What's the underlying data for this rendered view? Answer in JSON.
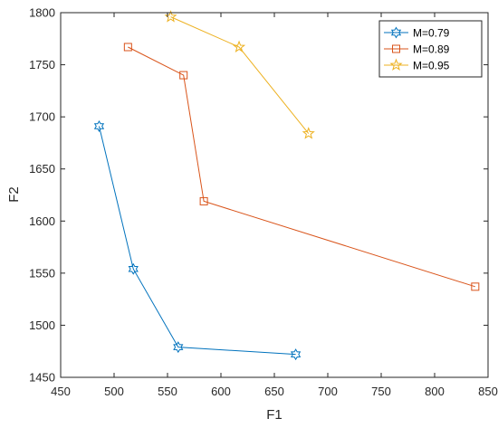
{
  "chart_data": {
    "type": "line",
    "xlabel": "F1",
    "ylabel": "F2",
    "xlim": [
      450,
      850
    ],
    "ylim": [
      1450,
      1800
    ],
    "xticks": [
      450,
      500,
      550,
      600,
      650,
      700,
      750,
      800,
      850
    ],
    "yticks": [
      1450,
      1500,
      1550,
      1600,
      1650,
      1700,
      1750,
      1800
    ],
    "grid": false,
    "legend_position": "top-right",
    "series": [
      {
        "name": "M=0.79",
        "color": "#0072BD",
        "marker": "hexagram",
        "points": [
          [
            486,
            1691
          ],
          [
            518,
            1554
          ],
          [
            560,
            1479
          ],
          [
            670,
            1472
          ]
        ]
      },
      {
        "name": "M=0.89",
        "color": "#D95319",
        "marker": "square",
        "points": [
          [
            513,
            1767
          ],
          [
            565,
            1740
          ],
          [
            584,
            1619
          ],
          [
            838,
            1537
          ]
        ]
      },
      {
        "name": "M=0.95",
        "color": "#EDB120",
        "marker": "pentagram",
        "points": [
          [
            553,
            1796
          ],
          [
            617,
            1767
          ],
          [
            682,
            1684
          ]
        ]
      }
    ]
  }
}
